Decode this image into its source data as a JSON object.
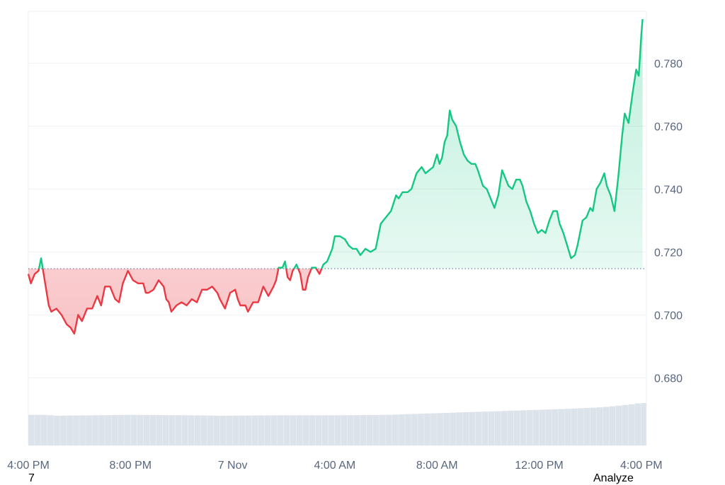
{
  "chart_data": {
    "type": "area",
    "baseline": 0.7147,
    "ylim": [
      0.6585,
      0.7965
    ],
    "y_ticks": [
      0.68,
      0.7,
      0.72,
      0.74,
      0.76,
      0.78
    ],
    "y_tick_labels": [
      "0.680",
      "0.700",
      "0.720",
      "0.740",
      "0.760",
      "0.780"
    ],
    "x_tick_labels": [
      "4:00 PM",
      "8:00 PM",
      "7 Nov",
      "4:00 AM",
      "8:00 AM",
      "12:00 PM",
      "4:00 PM"
    ],
    "x_tick_hours": [
      0,
      4,
      8,
      12,
      16,
      20,
      24
    ],
    "xlim_hours": [
      0,
      24.2
    ],
    "price": [
      [
        0.0,
        0.713
      ],
      [
        0.1,
        0.71
      ],
      [
        0.25,
        0.713
      ],
      [
        0.4,
        0.714
      ],
      [
        0.5,
        0.718
      ],
      [
        0.6,
        0.713
      ],
      [
        0.8,
        0.703
      ],
      [
        0.9,
        0.701
      ],
      [
        1.1,
        0.702
      ],
      [
        1.3,
        0.7
      ],
      [
        1.5,
        0.697
      ],
      [
        1.65,
        0.696
      ],
      [
        1.8,
        0.694
      ],
      [
        1.95,
        0.7
      ],
      [
        2.1,
        0.698
      ],
      [
        2.3,
        0.702
      ],
      [
        2.5,
        0.702
      ],
      [
        2.7,
        0.706
      ],
      [
        2.85,
        0.703
      ],
      [
        3.0,
        0.709
      ],
      [
        3.2,
        0.709
      ],
      [
        3.4,
        0.705
      ],
      [
        3.55,
        0.704
      ],
      [
        3.7,
        0.71
      ],
      [
        3.9,
        0.714
      ],
      [
        4.1,
        0.711
      ],
      [
        4.3,
        0.71
      ],
      [
        4.5,
        0.71
      ],
      [
        4.6,
        0.707
      ],
      [
        4.7,
        0.707
      ],
      [
        4.9,
        0.708
      ],
      [
        5.1,
        0.711
      ],
      [
        5.3,
        0.709
      ],
      [
        5.4,
        0.705
      ],
      [
        5.5,
        0.704
      ],
      [
        5.6,
        0.701
      ],
      [
        5.8,
        0.703
      ],
      [
        6.0,
        0.704
      ],
      [
        6.2,
        0.703
      ],
      [
        6.4,
        0.705
      ],
      [
        6.6,
        0.704
      ],
      [
        6.8,
        0.708
      ],
      [
        7.0,
        0.708
      ],
      [
        7.2,
        0.709
      ],
      [
        7.4,
        0.707
      ],
      [
        7.5,
        0.705
      ],
      [
        7.7,
        0.702
      ],
      [
        7.9,
        0.707
      ],
      [
        8.1,
        0.708
      ],
      [
        8.2,
        0.705
      ],
      [
        8.3,
        0.703
      ],
      [
        8.5,
        0.703
      ],
      [
        8.6,
        0.701
      ],
      [
        8.8,
        0.704
      ],
      [
        9.0,
        0.704
      ],
      [
        9.2,
        0.709
      ],
      [
        9.4,
        0.706
      ],
      [
        9.6,
        0.709
      ],
      [
        9.7,
        0.711
      ],
      [
        9.8,
        0.715
      ],
      [
        9.95,
        0.715
      ],
      [
        10.05,
        0.717
      ],
      [
        10.15,
        0.712
      ],
      [
        10.25,
        0.711
      ],
      [
        10.35,
        0.714
      ],
      [
        10.5,
        0.716
      ],
      [
        10.65,
        0.713
      ],
      [
        10.75,
        0.708
      ],
      [
        10.85,
        0.708
      ],
      [
        10.95,
        0.712
      ],
      [
        11.1,
        0.715
      ],
      [
        11.25,
        0.715
      ],
      [
        11.4,
        0.713
      ],
      [
        11.55,
        0.716
      ],
      [
        11.7,
        0.717
      ],
      [
        11.9,
        0.721
      ],
      [
        12.0,
        0.725
      ],
      [
        12.2,
        0.725
      ],
      [
        12.4,
        0.724
      ],
      [
        12.55,
        0.722
      ],
      [
        12.7,
        0.721
      ],
      [
        12.85,
        0.721
      ],
      [
        13.0,
        0.719
      ],
      [
        13.2,
        0.721
      ],
      [
        13.4,
        0.72
      ],
      [
        13.6,
        0.721
      ],
      [
        13.8,
        0.729
      ],
      [
        14.0,
        0.731
      ],
      [
        14.2,
        0.733
      ],
      [
        14.4,
        0.738
      ],
      [
        14.5,
        0.737
      ],
      [
        14.65,
        0.739
      ],
      [
        14.85,
        0.739
      ],
      [
        15.0,
        0.74
      ],
      [
        15.2,
        0.745
      ],
      [
        15.4,
        0.747
      ],
      [
        15.55,
        0.745
      ],
      [
        15.7,
        0.746
      ],
      [
        15.85,
        0.747
      ],
      [
        16.0,
        0.751
      ],
      [
        16.1,
        0.748
      ],
      [
        16.2,
        0.75
      ],
      [
        16.3,
        0.755
      ],
      [
        16.4,
        0.757
      ],
      [
        16.5,
        0.765
      ],
      [
        16.6,
        0.762
      ],
      [
        16.75,
        0.76
      ],
      [
        16.9,
        0.755
      ],
      [
        17.05,
        0.751
      ],
      [
        17.2,
        0.749
      ],
      [
        17.35,
        0.748
      ],
      [
        17.5,
        0.748
      ],
      [
        17.6,
        0.746
      ],
      [
        17.8,
        0.741
      ],
      [
        17.95,
        0.74
      ],
      [
        18.1,
        0.737
      ],
      [
        18.25,
        0.734
      ],
      [
        18.4,
        0.738
      ],
      [
        18.55,
        0.746
      ],
      [
        18.7,
        0.743
      ],
      [
        18.8,
        0.741
      ],
      [
        18.95,
        0.74
      ],
      [
        19.1,
        0.743
      ],
      [
        19.25,
        0.743
      ],
      [
        19.35,
        0.741
      ],
      [
        19.5,
        0.736
      ],
      [
        19.65,
        0.733
      ],
      [
        19.8,
        0.729
      ],
      [
        19.95,
        0.726
      ],
      [
        20.1,
        0.727
      ],
      [
        20.25,
        0.726
      ],
      [
        20.4,
        0.73
      ],
      [
        20.55,
        0.733
      ],
      [
        20.7,
        0.733
      ],
      [
        20.8,
        0.729
      ],
      [
        20.95,
        0.726
      ],
      [
        21.1,
        0.722
      ],
      [
        21.25,
        0.718
      ],
      [
        21.4,
        0.719
      ],
      [
        21.5,
        0.722
      ],
      [
        21.7,
        0.73
      ],
      [
        21.85,
        0.731
      ],
      [
        22.0,
        0.734
      ],
      [
        22.1,
        0.733
      ],
      [
        22.25,
        0.74
      ],
      [
        22.4,
        0.742
      ],
      [
        22.55,
        0.745
      ],
      [
        22.65,
        0.741
      ],
      [
        22.8,
        0.738
      ],
      [
        22.95,
        0.733
      ],
      [
        23.1,
        0.744
      ],
      [
        23.25,
        0.757
      ],
      [
        23.35,
        0.764
      ],
      [
        23.5,
        0.761
      ],
      [
        23.65,
        0.77
      ],
      [
        23.8,
        0.778
      ],
      [
        23.9,
        0.776
      ],
      [
        24.0,
        0.789
      ],
      [
        24.05,
        0.794
      ]
    ],
    "volume": [
      [
        0.0,
        0.36
      ],
      [
        0.8,
        0.36
      ],
      [
        1.0,
        0.35
      ],
      [
        4.0,
        0.36
      ],
      [
        6.5,
        0.355
      ],
      [
        7.5,
        0.35
      ],
      [
        9.5,
        0.355
      ],
      [
        12.0,
        0.355
      ],
      [
        14.0,
        0.36
      ],
      [
        15.0,
        0.37
      ],
      [
        17.0,
        0.39
      ],
      [
        19.0,
        0.41
      ],
      [
        21.0,
        0.43
      ],
      [
        22.5,
        0.45
      ],
      [
        23.5,
        0.48
      ],
      [
        24.0,
        0.5
      ],
      [
        24.2,
        0.5
      ]
    ],
    "colors": {
      "up_line": "#16c784",
      "down_line": "#ea3943",
      "up_fill": "#16c784",
      "down_fill": "#ea3943",
      "volume": "#dde3ea",
      "grid": "#eff2f5",
      "baseline": "#58667e"
    }
  },
  "footer": {
    "left_text": "7",
    "right_text": "Analyze"
  }
}
